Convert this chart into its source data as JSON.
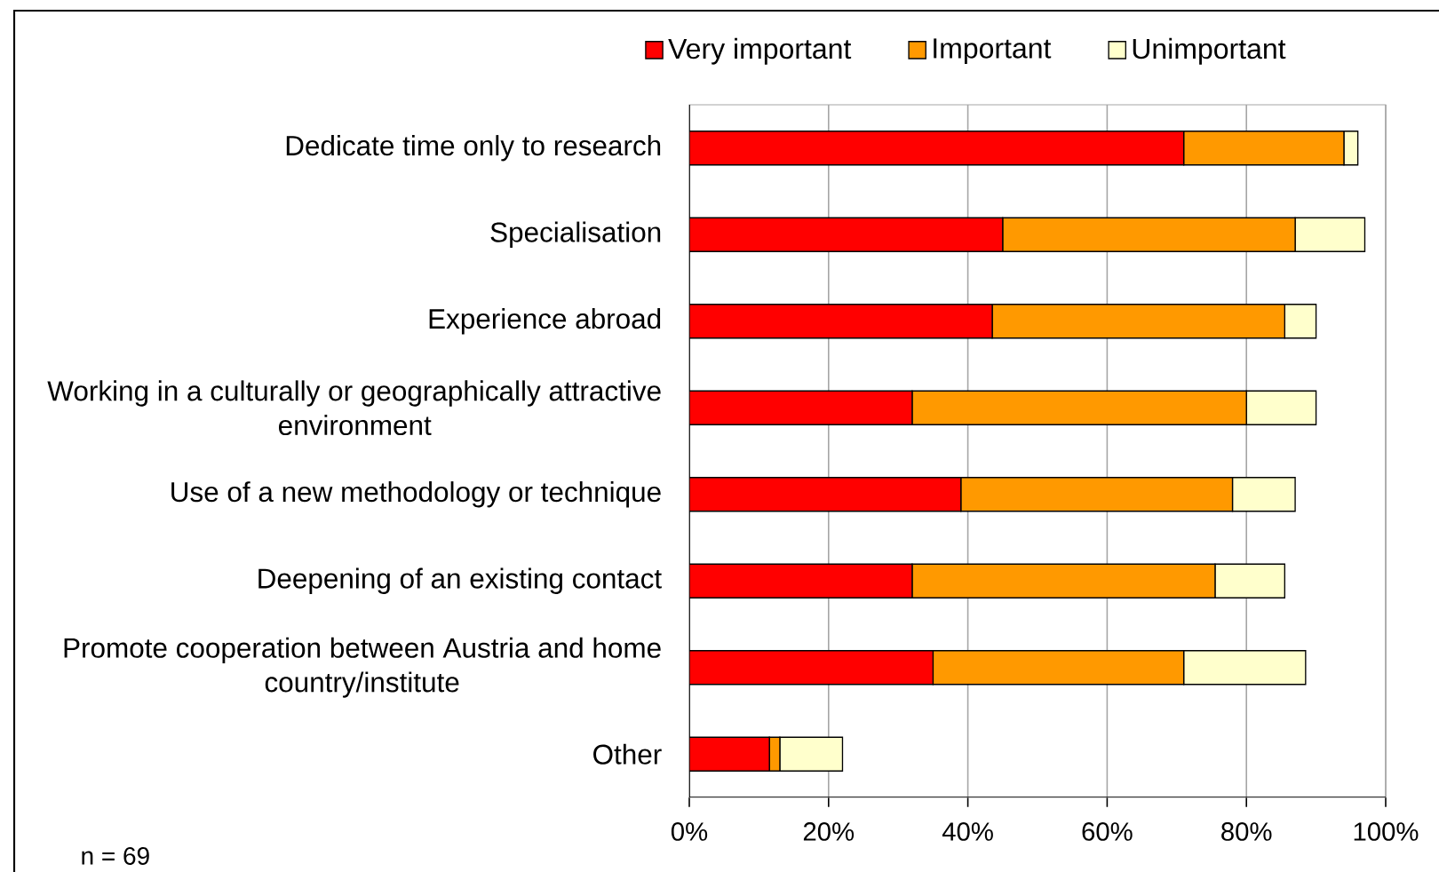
{
  "chart_data": {
    "type": "bar",
    "orientation": "horizontal",
    "stacked": true,
    "categories": [
      "Dedicate time only to research",
      "Specialisation",
      "Experience abroad",
      "Working in a culturally or geographically attractive environment",
      "Use of a new methodology or technique",
      "Deepening of an existing contact",
      "Promote cooperation between Austria and home country/institute",
      "Other"
    ],
    "series": [
      {
        "name": "Very important",
        "color": "#ff0000",
        "values": [
          71,
          45,
          43.5,
          32,
          39,
          32,
          35,
          11.5
        ]
      },
      {
        "name": "Important",
        "color": "#ff9900",
        "values": [
          23,
          42,
          42,
          48,
          39,
          43.5,
          36,
          1.5
        ]
      },
      {
        "name": "Unimportant",
        "color": "#ffffcc",
        "values": [
          2,
          10,
          4.5,
          10,
          9,
          10,
          17.5,
          9
        ]
      }
    ],
    "xlim": [
      0,
      100
    ],
    "xticks": [
      {
        "value": 0,
        "label": "0%"
      },
      {
        "value": 20,
        "label": "20%"
      },
      {
        "value": 40,
        "label": "40%"
      },
      {
        "value": 60,
        "label": "60%"
      },
      {
        "value": 80,
        "label": "80%"
      },
      {
        "value": 100,
        "label": "100%"
      }
    ],
    "grid": "x",
    "legend": "top",
    "annotations": [
      "n = 69"
    ]
  }
}
